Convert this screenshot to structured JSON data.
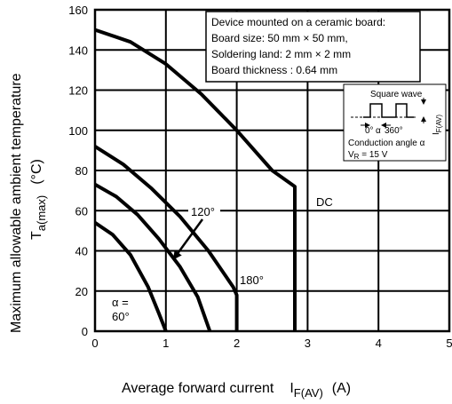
{
  "chart_data": {
    "type": "line",
    "xlabel": "Average forward current",
    "xlabel_symbol": "I",
    "xlabel_subscript": "F(AV)",
    "xlabel_unit": "(A)",
    "ylabel": "Maximum allowable ambient temperature",
    "ylabel_symbol": "T",
    "ylabel_subscript": "a(max)",
    "ylabel_unit": "(°C)",
    "xlim": [
      0,
      5
    ],
    "ylim": [
      0,
      160
    ],
    "x_ticks": [
      "0",
      "1",
      "2",
      "3",
      "4",
      "5"
    ],
    "y_ticks": [
      "0",
      "20",
      "40",
      "60",
      "80",
      "100",
      "120",
      "140",
      "160"
    ],
    "grid": true,
    "note": {
      "lines": [
        "Device mounted on a ceramic board:",
        "Board size: 50 mm × 50 mm,",
        "Soldering land: 2 mm  × 2 mm",
        "Board thickness : 0.64 mm"
      ]
    },
    "inset": {
      "title": "Square wave",
      "current_symbol": "I",
      "current_sub": "F(AV)",
      "angle_labels": [
        "0°",
        "α",
        "360°"
      ],
      "conduction": "Conduction angle α",
      "vr_symbol": "V",
      "vr_sub": "R",
      "vr_value": " = 15 V"
    },
    "series": [
      {
        "name": "DC",
        "points": [
          [
            0,
            150
          ],
          [
            0.5,
            144
          ],
          [
            1,
            133
          ],
          [
            1.5,
            118
          ],
          [
            2,
            100
          ],
          [
            2.5,
            80
          ],
          [
            2.82,
            72
          ],
          [
            2.82,
            0
          ]
        ]
      },
      {
        "name": "180°",
        "points": [
          [
            0,
            92
          ],
          [
            0.4,
            83
          ],
          [
            0.8,
            71
          ],
          [
            1.2,
            57
          ],
          [
            1.6,
            40
          ],
          [
            1.95,
            22
          ],
          [
            2,
            18
          ],
          [
            2,
            0
          ]
        ]
      },
      {
        "name": "120°",
        "points": [
          [
            0,
            73
          ],
          [
            0.3,
            67
          ],
          [
            0.6,
            58
          ],
          [
            0.9,
            46
          ],
          [
            1.2,
            32
          ],
          [
            1.45,
            17
          ],
          [
            1.62,
            0
          ]
        ]
      },
      {
        "name": "α = 60°",
        "points": [
          [
            0,
            54
          ],
          [
            0.25,
            48
          ],
          [
            0.5,
            38
          ],
          [
            0.75,
            22
          ],
          [
            0.9,
            9
          ],
          [
            1,
            0
          ]
        ]
      }
    ],
    "curve_labels": {
      "dc": "DC",
      "c120": "120°",
      "c180": "180°",
      "alpha_line1": "α =",
      "alpha_line2": "60°"
    }
  }
}
